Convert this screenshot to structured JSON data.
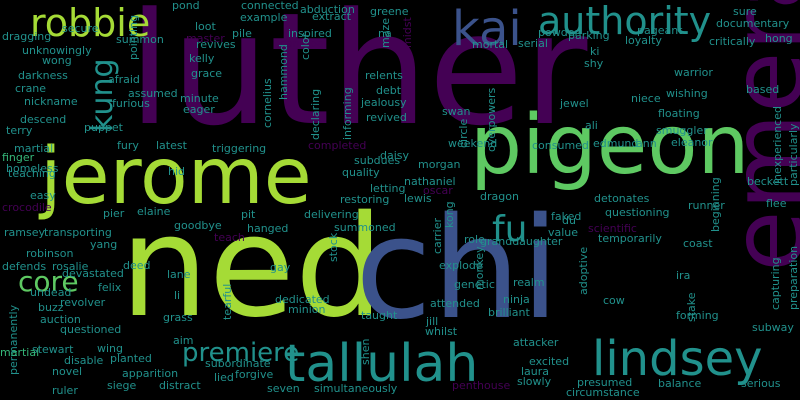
{
  "colors": {
    "background": "#000000",
    "palette": [
      "#440154",
      "#3b528b",
      "#21918c",
      "#5ec962",
      "#a5db36",
      "#2c728e",
      "#472d7b",
      "#35b779"
    ]
  },
  "words": [
    "luther",
    "ned",
    "chi",
    "jerome",
    "pigeon",
    "emerald",
    "authority",
    "kai",
    "lindsey",
    "tallulah",
    "robbie",
    "fu",
    "core",
    "premiere",
    "kung",
    "pond",
    "connected",
    "abduction",
    "greene",
    "sure",
    "documentary",
    "secure",
    "dragging",
    "unknowingly",
    "wong",
    "darkness",
    "crane",
    "nickname",
    "descend",
    "terry",
    "martial",
    "finger",
    "homeless",
    "teaching",
    "easy",
    "crocodile",
    "ramsey",
    "robinson",
    "defends",
    "undead",
    "buzz",
    "auction",
    "questioned",
    "permanently",
    "stewart",
    "martial",
    "ruler",
    "loot",
    "master",
    "pile",
    "revives",
    "example",
    "cannibal",
    "extract",
    "powder",
    "serial",
    "mortal",
    "parking",
    "pageant",
    "loyalty",
    "critically",
    "hong",
    "warrior",
    "wishing",
    "based",
    "niece",
    "floating",
    "inexperienced",
    "particularly",
    "smuggler",
    "eleanor",
    "ann",
    "edmund",
    "consumed",
    "beckett",
    "flee",
    "detonates",
    "runner",
    "beginning",
    "questioning",
    "preparation",
    "capturing",
    "temporarily",
    "coast",
    "ira",
    "cow",
    "stake",
    "forming",
    "subway",
    "serious",
    "balance",
    "presumed",
    "circumstance",
    "slowly",
    "penthouse",
    "excited",
    "laura",
    "attacker",
    "summon",
    "pointing",
    "kelly",
    "grace",
    "afraid",
    "assumed",
    "furious",
    "puppet",
    "fury",
    "minute",
    "eager",
    "hammond",
    "cornelius",
    "color",
    "inspired",
    "declaring",
    "informing",
    "jealousy",
    "debt",
    "relents",
    "revived",
    "swan",
    "circle",
    "overpowers",
    "jewel",
    "ali",
    "ki",
    "shy",
    "midst",
    "maze",
    "latest",
    "triggering",
    "completed",
    "weekend",
    "hid",
    "subdues",
    "quality",
    "daisy",
    "morgan",
    "nathaniel",
    "lewis",
    "letting",
    "oscar",
    "restoring",
    "dragon",
    "delivering",
    "pit",
    "elaine",
    "pier",
    "yang",
    "transporting",
    "goodbye",
    "teach",
    "hanged",
    "summoned",
    "stock",
    "carrier",
    "kong",
    "monkey",
    "role",
    "granddaughter",
    "value",
    "faked",
    "du",
    "scientific",
    "adoptive",
    "deed",
    "devastated",
    "rosalie",
    "felix",
    "revolver",
    "lane",
    "li",
    "gay",
    "grass",
    "tearful",
    "dedicated",
    "minion",
    "explode",
    "genetic",
    "taught",
    "realm",
    "brilliant",
    "attended",
    "jill",
    "whilst",
    "ninja",
    "aim",
    "wing",
    "planted",
    "disable",
    "novel",
    "apparition",
    "siege",
    "distract",
    "lied",
    "subordinate",
    "forgive",
    "seven",
    "simultaneously",
    "shen",
    "na"
  ]
}
